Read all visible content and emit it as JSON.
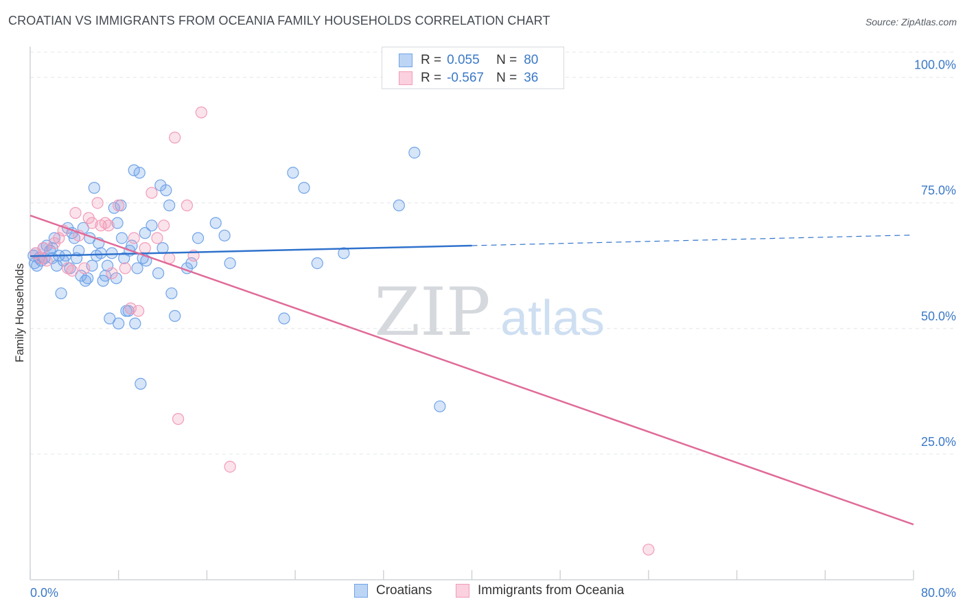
{
  "header": {
    "title": "CROATIAN VS IMMIGRANTS FROM OCEANIA FAMILY HOUSEHOLDS CORRELATION CHART",
    "source": "Source: ZipAtlas.com"
  },
  "watermark": {
    "zip": "ZIP",
    "atlas": "atlas"
  },
  "legend": {
    "rows": [
      {
        "r_label": "R =",
        "r_value": "0.055",
        "n_label": "N =",
        "n_value": "80",
        "color": "#6fa3e8"
      },
      {
        "r_label": "R =",
        "r_value": "-0.567",
        "n_label": "N =",
        "n_value": "36",
        "color": "#f29bb8"
      }
    ]
  },
  "bottom_legend": {
    "croatians": "Croatians",
    "oceania": "Immigrants from Oceania"
  },
  "chart_data": {
    "type": "scatter",
    "title": "CROATIAN VS IMMIGRANTS FROM OCEANIA FAMILY HOUSEHOLDS CORRELATION CHART",
    "xlabel": "",
    "ylabel": "Family Households",
    "xlim": [
      0,
      80
    ],
    "ylim": [
      0,
      105
    ],
    "x_tick_labels": [
      "0.0%",
      "80.0%"
    ],
    "y_ticks": [
      25,
      50,
      75,
      100
    ],
    "y_tick_labels": [
      "25.0%",
      "50.0%",
      "75.0%",
      "100.0%"
    ],
    "grid": true,
    "colors": {
      "croatians": "#6fa3e8",
      "oceania": "#f29bb8",
      "croatians_line": "#2f72cc",
      "oceania_line": "#e06a98",
      "axis_text": "#3a78c7"
    },
    "series": [
      {
        "name": "Croatians",
        "points": [
          [
            0.3,
            64.5
          ],
          [
            0.4,
            63.0
          ],
          [
            0.5,
            65.0
          ],
          [
            0.6,
            62.5
          ],
          [
            0.8,
            64.0
          ],
          [
            1.0,
            63.5
          ],
          [
            1.2,
            66.0
          ],
          [
            1.3,
            64.0
          ],
          [
            1.5,
            66.5
          ],
          [
            1.8,
            65.5
          ],
          [
            2.0,
            64.0
          ],
          [
            2.2,
            68.0
          ],
          [
            2.4,
            62.5
          ],
          [
            2.6,
            64.5
          ],
          [
            2.8,
            57.0
          ],
          [
            3.0,
            63.5
          ],
          [
            3.2,
            64.5
          ],
          [
            3.4,
            70.0
          ],
          [
            3.6,
            62.0
          ],
          [
            3.8,
            69.0
          ],
          [
            4.0,
            68.0
          ],
          [
            4.2,
            64.0
          ],
          [
            4.4,
            65.5
          ],
          [
            4.6,
            60.5
          ],
          [
            4.8,
            70.0
          ],
          [
            5.0,
            59.5
          ],
          [
            5.2,
            60.0
          ],
          [
            5.4,
            68.0
          ],
          [
            5.6,
            62.5
          ],
          [
            5.8,
            78.0
          ],
          [
            6.0,
            64.5
          ],
          [
            6.2,
            67.0
          ],
          [
            6.4,
            65.0
          ],
          [
            6.6,
            59.5
          ],
          [
            6.8,
            60.5
          ],
          [
            7.0,
            62.5
          ],
          [
            7.2,
            52.0
          ],
          [
            7.4,
            65.0
          ],
          [
            7.6,
            74.0
          ],
          [
            7.8,
            60.0
          ],
          [
            7.9,
            71.0
          ],
          [
            8.0,
            51.0
          ],
          [
            8.2,
            74.5
          ],
          [
            8.3,
            68.0
          ],
          [
            8.5,
            64.0
          ],
          [
            8.7,
            53.5
          ],
          [
            8.9,
            53.5
          ],
          [
            9.0,
            65.5
          ],
          [
            9.2,
            66.5
          ],
          [
            9.4,
            81.5
          ],
          [
            9.5,
            51.0
          ],
          [
            9.7,
            62.0
          ],
          [
            9.9,
            81.0
          ],
          [
            10.0,
            39.0
          ],
          [
            10.2,
            64.0
          ],
          [
            10.4,
            69.0
          ],
          [
            10.5,
            63.5
          ],
          [
            11.0,
            70.5
          ],
          [
            11.6,
            61.0
          ],
          [
            11.8,
            78.5
          ],
          [
            12.0,
            66.0
          ],
          [
            12.3,
            77.5
          ],
          [
            12.6,
            74.5
          ],
          [
            12.8,
            57.0
          ],
          [
            13.1,
            52.5
          ],
          [
            14.2,
            62.0
          ],
          [
            14.6,
            63.0
          ],
          [
            15.2,
            68.0
          ],
          [
            16.8,
            71.0
          ],
          [
            17.6,
            68.5
          ],
          [
            18.1,
            63.0
          ],
          [
            23.0,
            52.0
          ],
          [
            23.8,
            81.0
          ],
          [
            24.8,
            78.0
          ],
          [
            26.0,
            63.0
          ],
          [
            28.4,
            65.0
          ],
          [
            33.4,
            74.5
          ],
          [
            34.8,
            85.0
          ],
          [
            37.1,
            34.5
          ],
          [
            2.0,
            66.0
          ]
        ]
      },
      {
        "name": "Immigrants from Oceania",
        "points": [
          [
            0.5,
            65.0
          ],
          [
            1.0,
            64.0
          ],
          [
            1.2,
            66.0
          ],
          [
            1.5,
            63.5
          ],
          [
            2.2,
            67.0
          ],
          [
            2.6,
            68.0
          ],
          [
            3.0,
            69.5
          ],
          [
            3.4,
            62.0
          ],
          [
            3.8,
            61.5
          ],
          [
            4.1,
            73.0
          ],
          [
            4.4,
            68.5
          ],
          [
            4.9,
            62.0
          ],
          [
            5.3,
            72.0
          ],
          [
            5.6,
            71.0
          ],
          [
            6.1,
            75.0
          ],
          [
            6.4,
            70.5
          ],
          [
            6.8,
            71.0
          ],
          [
            7.1,
            70.5
          ],
          [
            7.4,
            61.0
          ],
          [
            8.0,
            74.5
          ],
          [
            8.6,
            62.0
          ],
          [
            9.1,
            54.0
          ],
          [
            9.4,
            68.0
          ],
          [
            9.8,
            53.5
          ],
          [
            10.4,
            66.0
          ],
          [
            11.0,
            77.0
          ],
          [
            11.5,
            68.0
          ],
          [
            12.1,
            70.5
          ],
          [
            12.6,
            64.0
          ],
          [
            13.1,
            88.0
          ],
          [
            13.4,
            32.0
          ],
          [
            14.2,
            74.5
          ],
          [
            14.8,
            64.5
          ],
          [
            15.5,
            93.0
          ],
          [
            18.1,
            22.5
          ],
          [
            56.0,
            6.0
          ]
        ]
      }
    ],
    "trendlines": [
      {
        "name": "Croatians",
        "x": [
          0,
          40
        ],
        "y": [
          64.4,
          66.5
        ],
        "dashed_extension": [
          40,
          80,
          66.5,
          68.6
        ]
      },
      {
        "name": "Immigrants from Oceania",
        "x": [
          0,
          80
        ],
        "y": [
          72.5,
          11.0
        ]
      }
    ]
  }
}
